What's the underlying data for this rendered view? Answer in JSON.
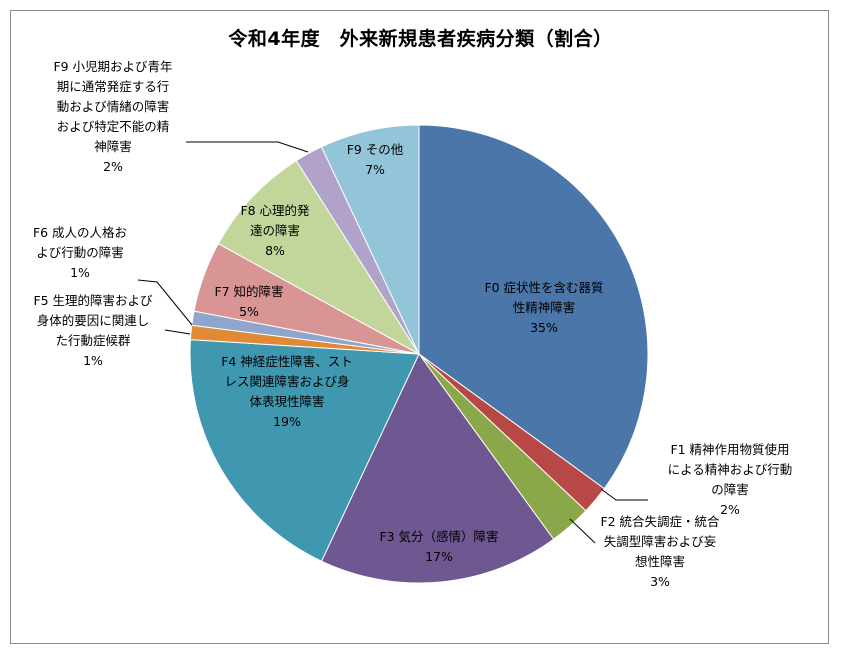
{
  "chart_data": {
    "type": "pie",
    "title": "令和4年度　外来新規患者疾病分類（割合）",
    "slices": [
      {
        "label_lines": [
          "F0 症状性を含む器質",
          "性精神障害"
        ],
        "value_text": "35%",
        "value": 35,
        "color": "#4a76aa"
      },
      {
        "label_lines": [
          "F1 精神作用物質使用",
          "による精神および行動",
          "の障害"
        ],
        "value_text": "2%",
        "value": 2,
        "color": "#b84845"
      },
      {
        "label_lines": [
          "F2 統合失調症・統合",
          "失調型障害および妄",
          "想性障害"
        ],
        "value_text": "3%",
        "value": 3,
        "color": "#8aa84a"
      },
      {
        "label_lines": [
          "F3 気分（感情）障害"
        ],
        "value_text": "17%",
        "value": 17,
        "color": "#6f5791"
      },
      {
        "label_lines": [
          "F4 神経症性障害、スト",
          "レス関連障害および身",
          "体表現性障害"
        ],
        "value_text": "19%",
        "value": 19,
        "color": "#3f98b0"
      },
      {
        "label_lines": [
          "F5 生理的障害および",
          "身体的要因に関連し",
          "た行動症候群"
        ],
        "value_text": "1%",
        "value": 1,
        "color": "#e08a36"
      },
      {
        "label_lines": [
          "F6 成人の人格お",
          "よび行動の障害"
        ],
        "value_text": "1%",
        "value": 1,
        "color": "#8ea6cc"
      },
      {
        "label_lines": [
          "F7 知的障害"
        ],
        "value_text": "5%",
        "value": 5,
        "color": "#d99593"
      },
      {
        "label_lines": [
          "F8 心理的発",
          "達の障害"
        ],
        "value_text": "8%",
        "value": 8,
        "color": "#c2d59b"
      },
      {
        "label_lines": [
          "F9 小児期および青年",
          "期に通常発症する行",
          "動および情緒の障害",
          "および特定不能の精",
          "神障害"
        ],
        "value_text": "2%",
        "value": 2,
        "color": "#b0a2c8"
      },
      {
        "label_lines": [
          "F9 その他"
        ],
        "value_text": "7%",
        "value": 7,
        "color": "#93c5d8"
      }
    ]
  }
}
